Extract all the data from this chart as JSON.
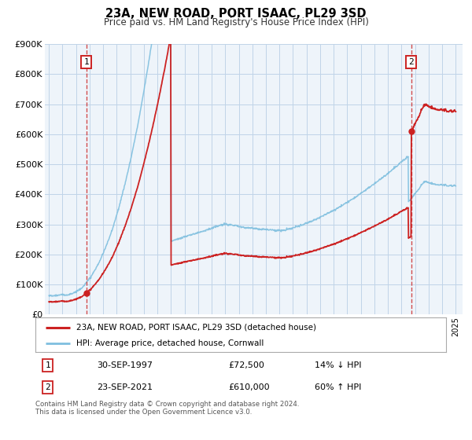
{
  "title": "23A, NEW ROAD, PORT ISAAC, PL29 3SD",
  "subtitle": "Price paid vs. HM Land Registry's House Price Index (HPI)",
  "ylim": [
    0,
    900000
  ],
  "yticks": [
    0,
    100000,
    200000,
    300000,
    400000,
    500000,
    600000,
    700000,
    800000,
    900000
  ],
  "ytick_labels": [
    "£0",
    "£100K",
    "£200K",
    "£300K",
    "£400K",
    "£500K",
    "£600K",
    "£700K",
    "£800K",
    "£900K"
  ],
  "xlim_start": 1994.7,
  "xlim_end": 2025.5,
  "hpi_color": "#7fbfdf",
  "sale_color": "#cc2222",
  "marker_color": "#cc2222",
  "vline_color": "#cc2222",
  "point1_x": 1997.75,
  "point1_y": 72500,
  "point2_x": 2021.72,
  "point2_y": 610000,
  "legend_label1": "23A, NEW ROAD, PORT ISAAC, PL29 3SD (detached house)",
  "legend_label2": "HPI: Average price, detached house, Cornwall",
  "table_row1": [
    "1",
    "30-SEP-1997",
    "£72,500",
    "14% ↓ HPI"
  ],
  "table_row2": [
    "2",
    "23-SEP-2021",
    "£610,000",
    "60% ↑ HPI"
  ],
  "footnote1": "Contains HM Land Registry data © Crown copyright and database right 2024.",
  "footnote2": "This data is licensed under the Open Government Licence v3.0.",
  "background_color": "#ffffff",
  "plot_bg_color": "#eef4fa",
  "grid_color": "#c0d4e8"
}
